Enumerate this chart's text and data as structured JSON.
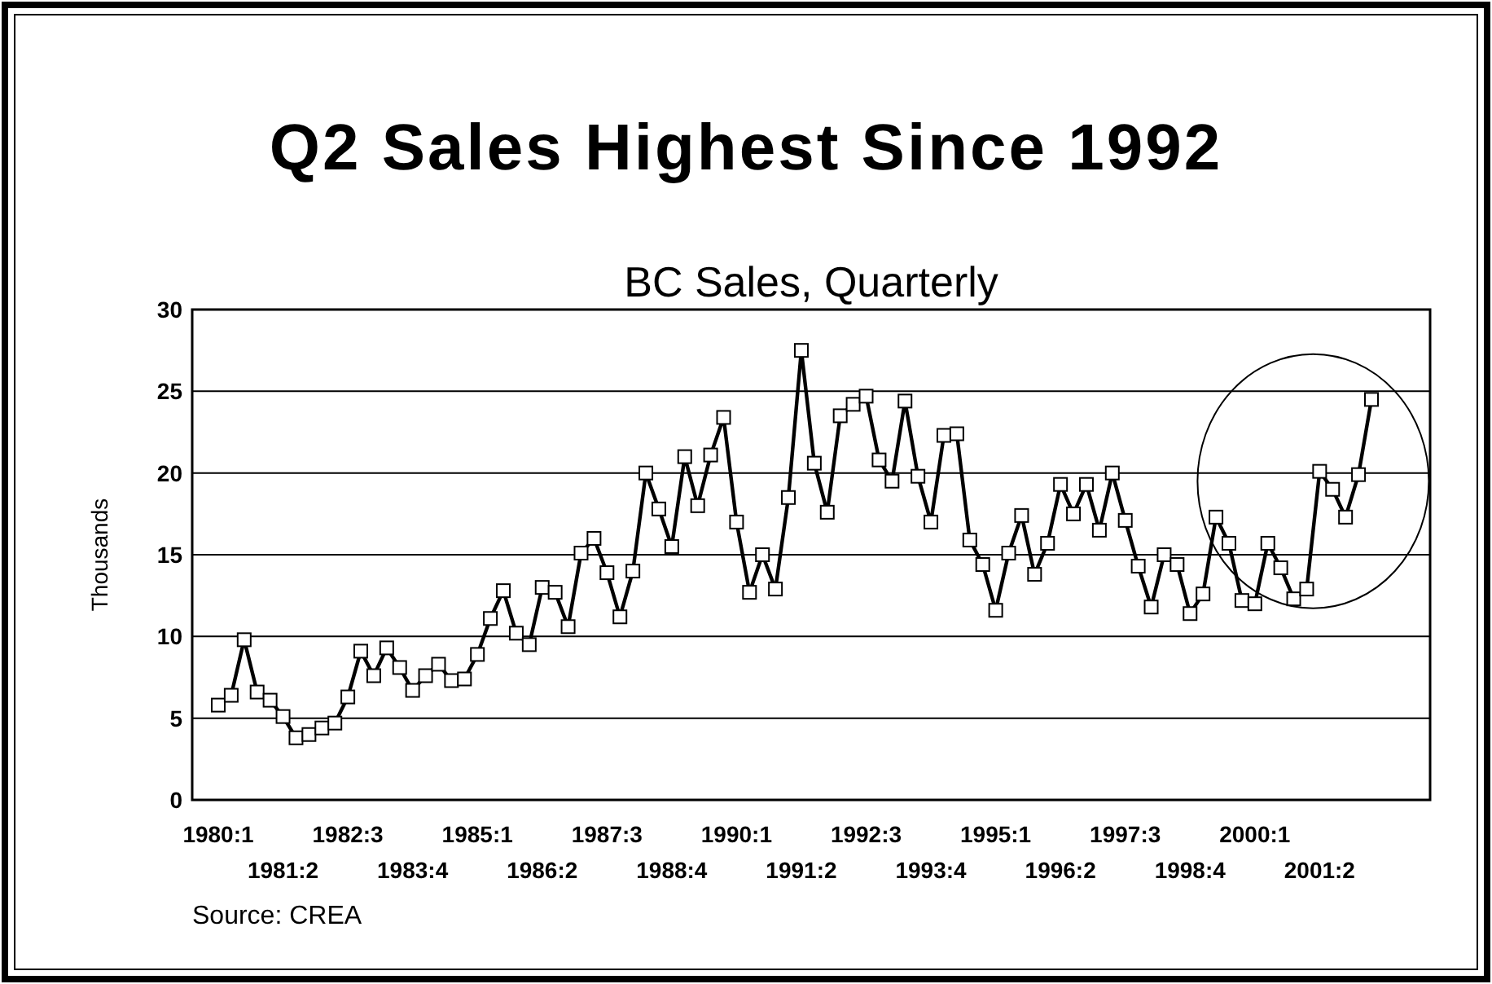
{
  "chart_data": {
    "type": "line",
    "title": "Q2 Sales Highest Since 1992",
    "subtitle": "BC Sales, Quarterly",
    "ylabel": "Thousands",
    "categories": [
      "1980:1",
      null,
      null,
      null,
      null,
      "1981:2",
      null,
      null,
      null,
      null,
      "1982:3",
      null,
      null,
      null,
      null,
      "1983:4",
      null,
      null,
      null,
      null,
      "1985:1",
      null,
      null,
      null,
      null,
      "1986:2",
      null,
      null,
      null,
      null,
      "1987:3",
      null,
      null,
      null,
      null,
      "1988:4",
      null,
      null,
      null,
      null,
      "1990:1",
      null,
      null,
      null,
      null,
      "1991:2",
      null,
      null,
      null,
      null,
      "1992:3",
      null,
      null,
      null,
      null,
      "1993:4",
      null,
      null,
      null,
      null,
      "1995:1",
      null,
      null,
      null,
      null,
      "1996:2",
      null,
      null,
      null,
      null,
      "1997:3",
      null,
      null,
      null,
      null,
      "1998:4",
      null,
      null,
      null,
      null,
      "2000:1",
      null,
      null,
      null,
      null,
      "2001:2",
      null,
      null,
      null,
      null
    ],
    "series": [
      {
        "color": "#000000",
        "values": [
          5.8,
          6.4,
          9.8,
          6.6,
          6.1,
          5.1,
          3.8,
          4.0,
          4.4,
          4.7,
          6.3,
          9.1,
          7.6,
          9.3,
          8.1,
          6.7,
          7.6,
          8.3,
          7.3,
          7.4,
          8.9,
          11.1,
          12.8,
          10.2,
          9.5,
          13.0,
          12.7,
          10.6,
          15.1,
          16.0,
          13.9,
          11.2,
          14.0,
          20.0,
          17.8,
          15.5,
          21.0,
          18.0,
          21.1,
          23.4,
          17.0,
          12.7,
          15.0,
          12.9,
          18.5,
          27.5,
          20.6,
          17.6,
          23.5,
          24.2,
          24.7,
          20.8,
          19.5,
          24.4,
          19.8,
          17.0,
          22.3,
          22.4,
          15.9,
          14.4,
          11.6,
          15.1,
          17.4,
          13.8,
          15.7,
          19.3,
          17.5,
          19.3,
          16.5,
          20.0,
          17.1,
          14.3,
          11.8,
          15.0,
          14.4,
          11.4,
          12.6,
          17.3,
          15.7,
          12.2,
          12.0,
          15.7,
          14.2,
          12.3,
          12.9,
          20.1,
          19.0,
          17.3,
          19.9,
          24.5
        ]
      }
    ],
    "ylim": [
      0,
      30
    ],
    "yticks": [
      0,
      5,
      10,
      15,
      20,
      25,
      30
    ],
    "grid": "y",
    "marker": "square",
    "line_style": "solid",
    "annotations": [
      "Source: CREA"
    ]
  }
}
